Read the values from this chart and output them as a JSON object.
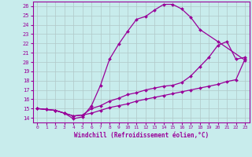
{
  "xlabel": "Windchill (Refroidissement éolien,°C)",
  "xlim": [
    -0.5,
    23.5
  ],
  "ylim": [
    13.5,
    26.5
  ],
  "xticks": [
    0,
    1,
    2,
    3,
    4,
    5,
    6,
    7,
    8,
    9,
    10,
    11,
    12,
    13,
    14,
    15,
    16,
    17,
    18,
    19,
    20,
    21,
    22,
    23
  ],
  "yticks": [
    14,
    15,
    16,
    17,
    18,
    19,
    20,
    21,
    22,
    23,
    24,
    25,
    26
  ],
  "bg_color": "#c8ecec",
  "line_color": "#990099",
  "grid_color": "#b0c8c8",
  "curve1_x": [
    0,
    1,
    2,
    3,
    4,
    5,
    6,
    7,
    8,
    9,
    10,
    11,
    12,
    13,
    14,
    15,
    16,
    17,
    18,
    20,
    23
  ],
  "curve1_y": [
    15.0,
    14.9,
    14.8,
    14.5,
    13.9,
    14.1,
    15.3,
    17.5,
    20.3,
    21.9,
    23.3,
    24.6,
    24.9,
    25.6,
    26.2,
    26.2,
    25.7,
    24.8,
    23.5,
    22.2,
    20.2
  ],
  "curve2_x": [
    0,
    1,
    2,
    3,
    4,
    5,
    6,
    7,
    8,
    9,
    10,
    11,
    12,
    13,
    14,
    15,
    16,
    17,
    18,
    19,
    20,
    21,
    22,
    23
  ],
  "curve2_y": [
    15.0,
    14.9,
    14.8,
    14.5,
    14.2,
    14.3,
    15.0,
    15.3,
    15.8,
    16.1,
    16.5,
    16.7,
    17.0,
    17.2,
    17.4,
    17.5,
    17.8,
    18.5,
    19.5,
    20.5,
    21.8,
    22.2,
    20.3,
    20.5
  ],
  "curve3_x": [
    0,
    1,
    2,
    3,
    4,
    5,
    6,
    7,
    8,
    9,
    10,
    11,
    12,
    13,
    14,
    15,
    16,
    17,
    18,
    19,
    20,
    21,
    22,
    23
  ],
  "curve3_y": [
    15.0,
    14.9,
    14.8,
    14.5,
    14.2,
    14.3,
    14.5,
    14.8,
    15.1,
    15.3,
    15.5,
    15.8,
    16.0,
    16.2,
    16.4,
    16.6,
    16.8,
    17.0,
    17.2,
    17.4,
    17.6,
    17.9,
    18.1,
    20.3
  ]
}
